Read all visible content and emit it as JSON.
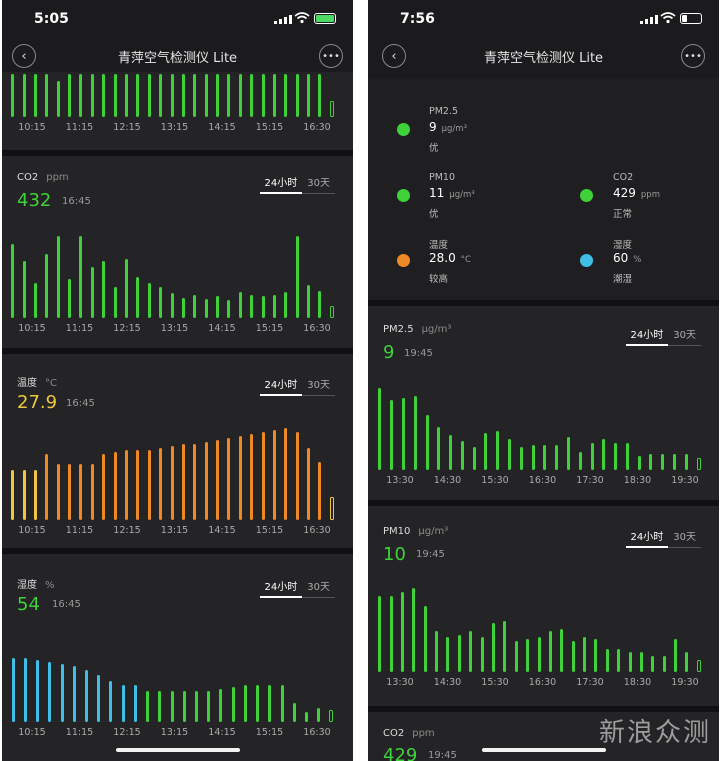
{
  "colors": {
    "green": "#3fd13a",
    "yellow": "#f0c640",
    "orange": "#ee8a26",
    "blue": "#3fbfe6",
    "battery_left": "#4cd964"
  },
  "left": {
    "status": {
      "time": "5:05"
    },
    "nav": {
      "title": "青萍空气检测仪 Lite",
      "back_icon": "back-icon",
      "more_icon": "more-icon"
    },
    "top_chart": {
      "color": "green",
      "bars": [
        48,
        48,
        48,
        48,
        40,
        48,
        48,
        48,
        48,
        48,
        48,
        48,
        48,
        48,
        48,
        48,
        48,
        48,
        48,
        48,
        48,
        48,
        48,
        48,
        48,
        48,
        48,
        48,
        40
      ],
      "ticks": [
        "10:15",
        "11:15",
        "12:15",
        "13:15",
        "14:15",
        "15:15",
        "16:30"
      ]
    },
    "co2": {
      "name": "CO2",
      "unit": "ppm",
      "value": "432",
      "time": "16:45",
      "range": [
        "24小时",
        "30天"
      ],
      "color": "green",
      "bars": [
        72,
        56,
        34,
        62,
        80,
        38,
        80,
        50,
        56,
        30,
        58,
        40,
        34,
        30,
        24,
        20,
        22,
        19,
        21,
        18,
        25,
        22,
        21,
        22,
        25,
        80,
        32,
        26,
        24
      ],
      "ticks": [
        "10:15",
        "11:15",
        "12:15",
        "13:15",
        "14:15",
        "15:15",
        "16:30"
      ]
    },
    "temp": {
      "name": "温度",
      "unit": "°C",
      "value": "27.9",
      "time": "16:45",
      "range": [
        "24小时",
        "30天"
      ],
      "colors": [
        "yellow",
        "yellow",
        "yellow",
        "orange"
      ],
      "bars": [
        50,
        50,
        50,
        66,
        56,
        56,
        56,
        56,
        66,
        68,
        70,
        70,
        70,
        72,
        74,
        76,
        76,
        78,
        80,
        82,
        84,
        86,
        88,
        90,
        92,
        88,
        72,
        58,
        52
      ],
      "ticks": [
        "10:15",
        "11:15",
        "12:15",
        "13:15",
        "14:15",
        "15:15",
        "16:30"
      ]
    },
    "humidity": {
      "name": "湿度",
      "unit": "%",
      "value": "54",
      "time": "16:45",
      "range": [
        "24小时",
        "30天"
      ],
      "bars": [
        62,
        62,
        60,
        58,
        56,
        54,
        50,
        46,
        40,
        36,
        36,
        30,
        30,
        30,
        30,
        30,
        30,
        32,
        34,
        36,
        36,
        36,
        36,
        18,
        10,
        14,
        14
      ],
      "blue_count": 11,
      "ticks": [
        "10:15",
        "11:15",
        "12:15",
        "13:15",
        "14:15",
        "15:15",
        "16:30"
      ]
    },
    "watermark": ""
  },
  "right": {
    "status": {
      "time": "7:56"
    },
    "nav": {
      "title": "青萍空气检测仪 Lite",
      "back_icon": "back-icon",
      "more_icon": "more-icon"
    },
    "summary": [
      {
        "name": "PM2.5",
        "value": "9",
        "unit": "μg/m³",
        "status": "优",
        "color": "green"
      },
      {
        "name": "PM10",
        "value": "11",
        "unit": "μg/m³",
        "status": "优",
        "color": "green"
      },
      {
        "name": "CO2",
        "value": "429",
        "unit": "ppm",
        "status": "正常",
        "color": "green"
      },
      {
        "name": "温度",
        "value": "28.0",
        "unit": "°C",
        "status": "较高",
        "color": "orange"
      },
      {
        "name": "湿度",
        "value": "60",
        "unit": "%",
        "status": "潮湿",
        "color": "blue"
      }
    ],
    "pm25": {
      "name": "PM2.5",
      "unit": "μg/m³",
      "value": "9",
      "time": "19:45",
      "range": [
        "24小时",
        "30天"
      ],
      "color": "green",
      "bars": [
        80,
        68,
        70,
        72,
        54,
        42,
        34,
        28,
        22,
        36,
        38,
        30,
        22,
        24,
        24,
        24,
        32,
        18,
        26,
        30,
        26,
        26,
        14,
        16,
        16,
        16,
        16,
        16
      ],
      "ticks": [
        "13:30",
        "14:30",
        "15:30",
        "16:30",
        "17:30",
        "18:30",
        "19:30"
      ]
    },
    "pm10": {
      "name": "PM10",
      "unit": "μg/m³",
      "value": "10",
      "time": "19:45",
      "range": [
        "24小时",
        "30天"
      ],
      "color": "green",
      "bars": [
        74,
        74,
        78,
        82,
        64,
        40,
        34,
        36,
        40,
        34,
        48,
        50,
        30,
        32,
        34,
        40,
        42,
        30,
        34,
        32,
        22,
        22,
        20,
        20,
        16,
        16,
        32,
        20,
        20
      ],
      "ticks": [
        "13:30",
        "14:30",
        "15:30",
        "16:30",
        "17:30",
        "18:30",
        "19:30"
      ]
    },
    "co2_peek": {
      "name": "CO2",
      "unit": "ppm",
      "value": "429",
      "time": "19:45"
    },
    "watermark": "新浪众测"
  }
}
